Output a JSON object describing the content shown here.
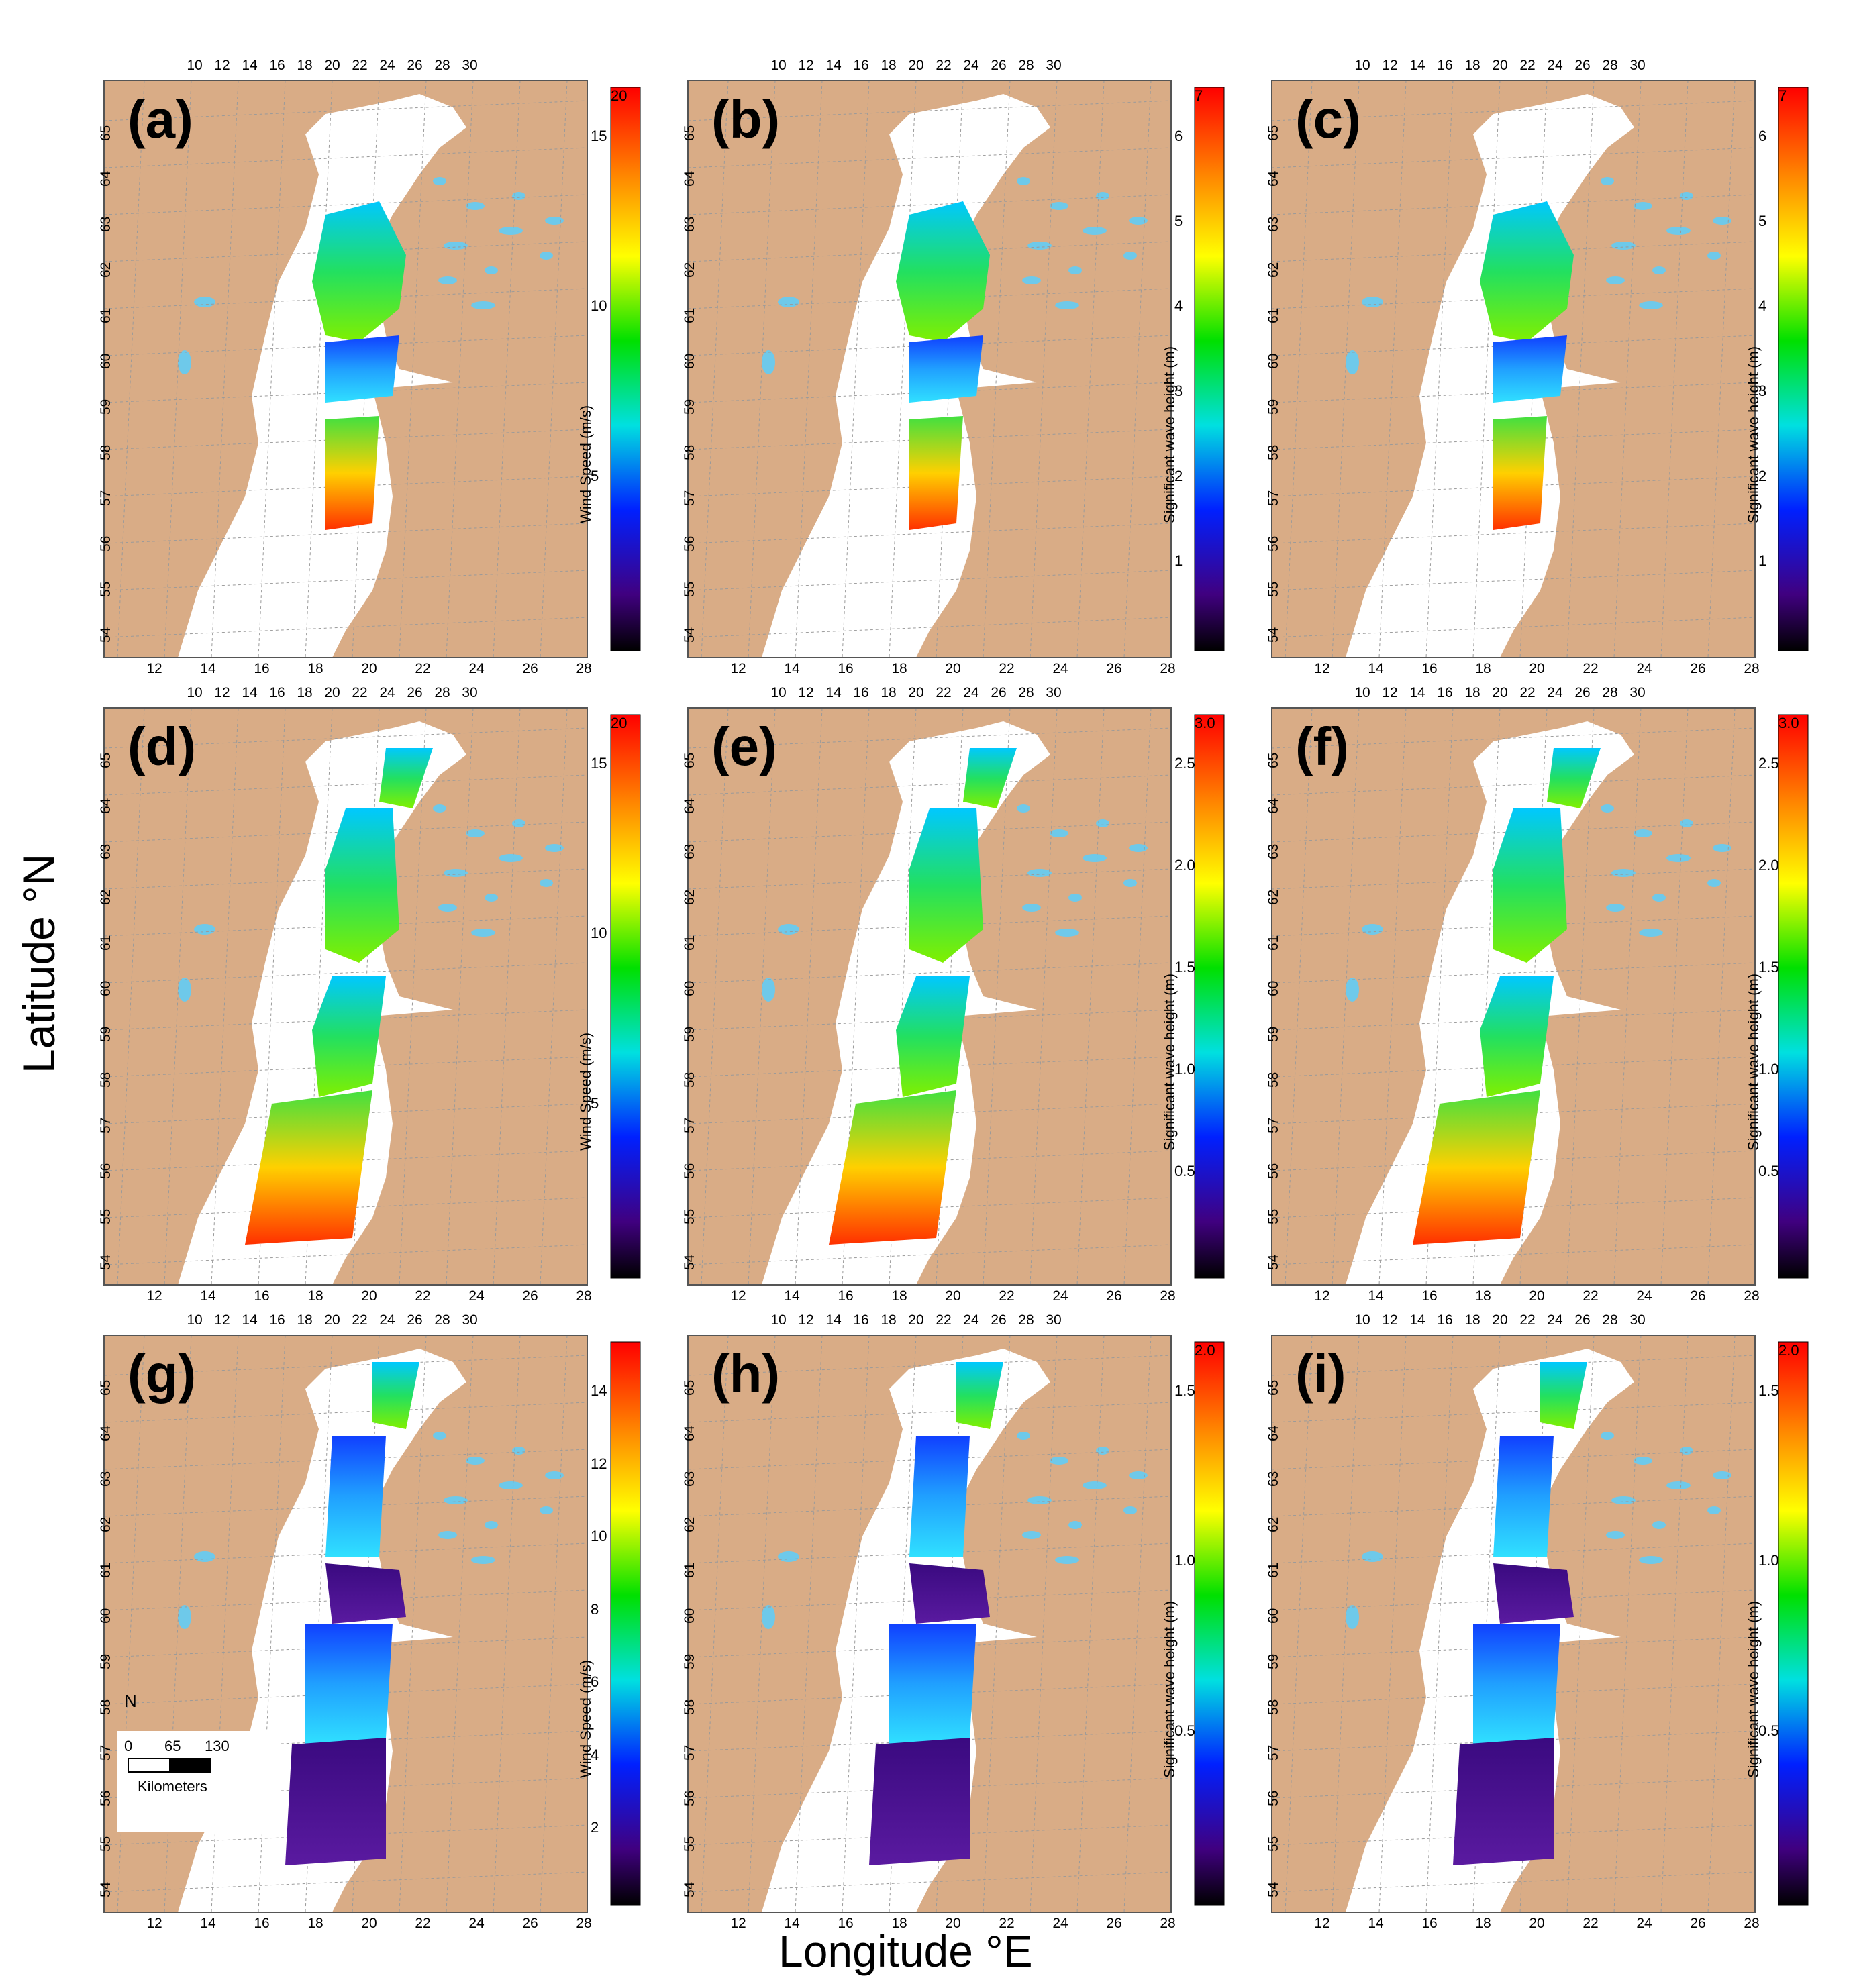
{
  "figure": {
    "y_axis_title": "Latitude °N",
    "x_axis_title": "Longitude °E",
    "top_lon_ticks": [
      "10",
      "12",
      "14",
      "16",
      "18",
      "20",
      "22",
      "24",
      "26",
      "28",
      "30"
    ],
    "bottom_lon_ticks": [
      "12",
      "14",
      "16",
      "18",
      "20",
      "22",
      "24",
      "26",
      "28"
    ],
    "lat_ticks": [
      "65",
      "64",
      "63",
      "62",
      "61",
      "60",
      "59",
      "58",
      "57",
      "56",
      "55",
      "54"
    ],
    "colors": {
      "land": "#d9ac86",
      "sea": "#ffffff",
      "lakes": "#6ec9ea",
      "grid": "#9a9a9a"
    }
  },
  "panels": [
    {
      "label": "(a)",
      "cb_title": "Wind Speed (m/s)",
      "cb_max": "20",
      "cb_ticks": [
        "15",
        "10",
        "5"
      ],
      "track": "a"
    },
    {
      "label": "(b)",
      "cb_title": "Significant wave height (m)",
      "cb_max": "7",
      "cb_ticks": [
        "6",
        "5",
        "4",
        "3",
        "2",
        "1"
      ],
      "track": "a"
    },
    {
      "label": "(c)",
      "cb_title": "Significant wave height (m)",
      "cb_max": "7",
      "cb_ticks": [
        "6",
        "5",
        "4",
        "3",
        "2",
        "1"
      ],
      "track": "a"
    },
    {
      "label": "(d)",
      "cb_title": "Wind Speed (m/s)",
      "cb_max": "20",
      "cb_ticks": [
        "15",
        "10",
        "5"
      ],
      "track": "d"
    },
    {
      "label": "(e)",
      "cb_title": "Significant wave height (m)",
      "cb_max": "3.0",
      "cb_ticks": [
        "2.5",
        "2.0",
        "1.5",
        "1.0",
        "0.5"
      ],
      "track": "d"
    },
    {
      "label": "(f)",
      "cb_title": "Significant wave height (m)",
      "cb_max": "3.0",
      "cb_ticks": [
        "2.5",
        "2.0",
        "1.5",
        "1.0",
        "0.5"
      ],
      "track": "d"
    },
    {
      "label": "(g)",
      "cb_title": "Wind Speed (m/s)",
      "cb_max": "",
      "cb_ticks": [
        "14",
        "12",
        "10",
        "8",
        "6",
        "4",
        "2"
      ],
      "track": "g"
    },
    {
      "label": "(h)",
      "cb_title": "Significant wave height (m)",
      "cb_max": "2.0",
      "cb_ticks": [
        "1.5",
        "1.0",
        "0.5"
      ],
      "track": "g"
    },
    {
      "label": "(i)",
      "cb_title": "Significant wave height (m)",
      "cb_max": "2.0",
      "cb_ticks": [
        "1.5",
        "1.0",
        "0.5"
      ],
      "track": "g"
    }
  ],
  "scale_bar": {
    "north": "N",
    "ticks": [
      "0",
      "65",
      "130"
    ],
    "unit": "Kilometers"
  }
}
